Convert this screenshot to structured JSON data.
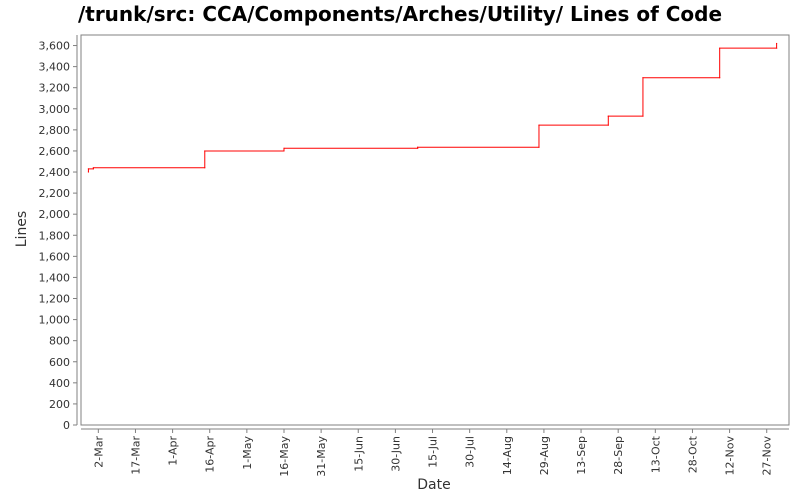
{
  "chart_data": {
    "type": "line",
    "title": "/trunk/src: CCA/Components/Arches/Utility/ Lines of Code",
    "xlabel": "Date",
    "ylabel": "Lines",
    "ylim": [
      0,
      3700
    ],
    "xlim": [
      "2000-02-24",
      "2000-12-06"
    ],
    "yticks": [
      0,
      200,
      400,
      600,
      800,
      1000,
      1200,
      1400,
      1600,
      1800,
      2000,
      2200,
      2400,
      2600,
      2800,
      3000,
      3200,
      3400,
      3600
    ],
    "ytick_labels": [
      "0",
      "200",
      "400",
      "600",
      "800",
      "1,000",
      "1,200",
      "1,400",
      "1,600",
      "1,800",
      "2,000",
      "2,200",
      "2,400",
      "2,600",
      "2,800",
      "3,000",
      "3,200",
      "3,400",
      "3,600"
    ],
    "xticks": [
      "2000-03-02",
      "2000-03-17",
      "2000-04-01",
      "2000-04-16",
      "2000-05-01",
      "2000-05-16",
      "2000-05-31",
      "2000-06-15",
      "2000-06-30",
      "2000-07-15",
      "2000-07-30",
      "2000-08-14",
      "2000-08-29",
      "2000-09-13",
      "2000-09-28",
      "2000-10-13",
      "2000-10-28",
      "2000-11-12",
      "2000-11-27"
    ],
    "xtick_labels": [
      "2-Mar",
      "17-Mar",
      "1-Apr",
      "16-Apr",
      "1-May",
      "16-May",
      "31-May",
      "15-Jun",
      "30-Jun",
      "15-Jul",
      "30-Jul",
      "14-Aug",
      "29-Aug",
      "13-Sep",
      "28-Sep",
      "13-Oct",
      "28-Oct",
      "12-Nov",
      "27-Nov"
    ],
    "grid": false,
    "series": [
      {
        "color": "#ff0000",
        "step": true,
        "points": [
          [
            "2000-02-27",
            2400
          ],
          [
            "2000-02-27",
            2430
          ],
          [
            "2000-02-29",
            2430
          ],
          [
            "2000-02-29",
            2440
          ],
          [
            "2000-04-14",
            2440
          ],
          [
            "2000-04-14",
            2600
          ],
          [
            "2000-05-16",
            2600
          ],
          [
            "2000-05-16",
            2625
          ],
          [
            "2000-07-09",
            2625
          ],
          [
            "2000-07-09",
            2635
          ],
          [
            "2000-08-27",
            2635
          ],
          [
            "2000-08-27",
            2845
          ],
          [
            "2000-09-24",
            2845
          ],
          [
            "2000-09-24",
            2930
          ],
          [
            "2000-10-08",
            2930
          ],
          [
            "2000-10-08",
            3295
          ],
          [
            "2000-11-08",
            3295
          ],
          [
            "2000-11-08",
            3575
          ],
          [
            "2000-12-01",
            3575
          ],
          [
            "2000-12-01",
            3620
          ]
        ]
      }
    ]
  }
}
